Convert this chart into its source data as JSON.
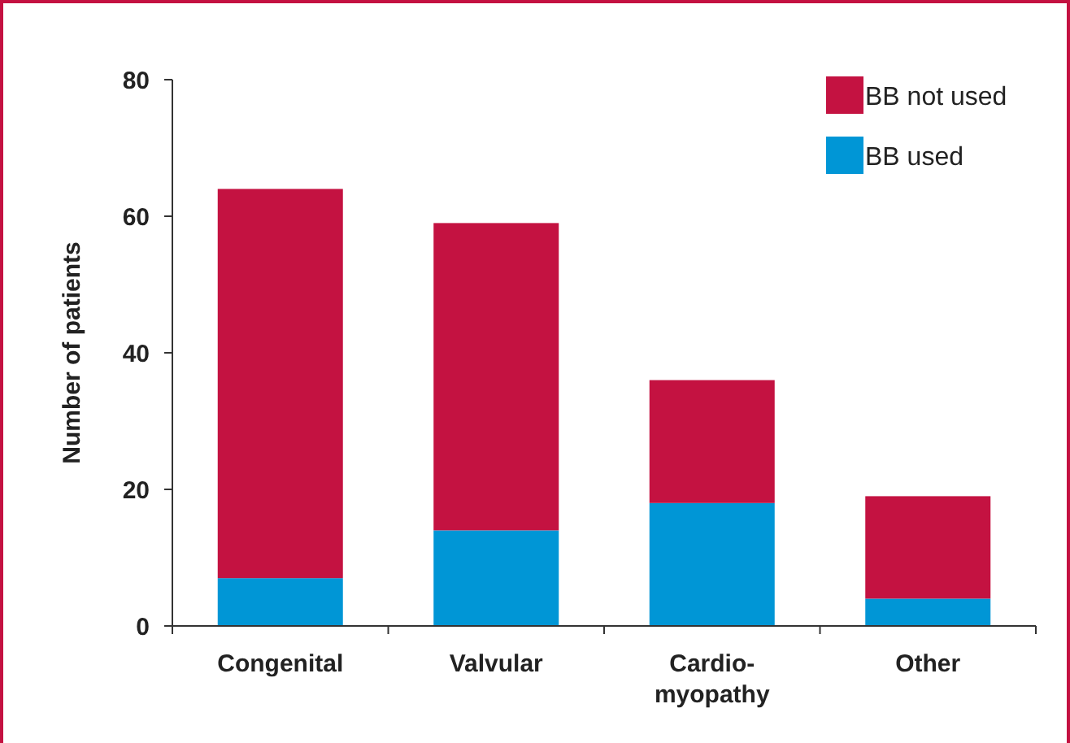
{
  "chart_data": {
    "type": "bar",
    "stacked": true,
    "ylabel": "Number of patients",
    "categories": [
      "Congenital",
      "Valvular",
      "Cardio-\nmyopathy",
      "Other"
    ],
    "series": [
      {
        "name": "BB used",
        "color": "#0096d6",
        "values": [
          7,
          14,
          18,
          4
        ]
      },
      {
        "name": "BB not used",
        "color": "#c41241",
        "values": [
          57,
          45,
          18,
          15
        ]
      }
    ],
    "ylim": [
      0,
      80
    ],
    "yticks": [
      0,
      20,
      40,
      60,
      80
    ],
    "legend": "top right",
    "grid": false
  }
}
